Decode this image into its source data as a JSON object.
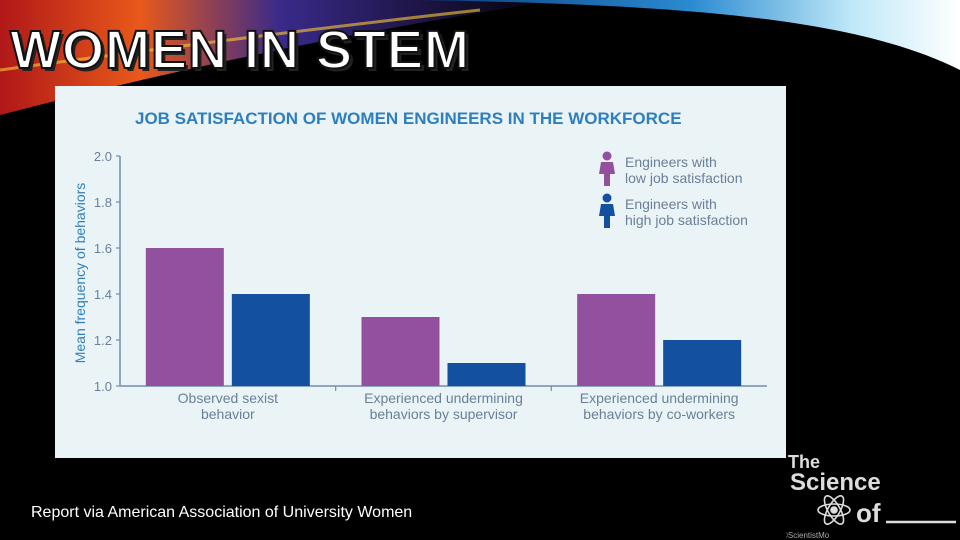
{
  "slide": {
    "title": "WOMEN IN STEM",
    "footer": "Report via American Association of University Women"
  },
  "logo": {
    "line1": "The",
    "line2": "Science",
    "line3": "of",
    "credit": "©ScientistMo"
  },
  "colors": {
    "low": "#93509f",
    "high": "#1450a0",
    "title": "#2f7fc0",
    "axis": "#6f8fb0",
    "tick": "#6a7f99"
  },
  "chart_data": {
    "type": "bar",
    "title": "JOB SATISFACTION OF WOMEN ENGINEERS IN THE WORKFORCE",
    "ylabel": "Mean frequency of behaviors",
    "xlabel": "",
    "ylim": [
      1.0,
      2.0
    ],
    "yticks": [
      "1.0",
      "1.2",
      "1.4",
      "1.6",
      "1.8",
      "2.0"
    ],
    "categories": [
      [
        "Observed sexist",
        "behavior"
      ],
      [
        "Experienced undermining",
        "behaviors by supervisor"
      ],
      [
        "Experienced undermining",
        "behaviors by co-workers"
      ]
    ],
    "series": [
      {
        "name": "Engineers with low job satisfaction",
        "legend": [
          "Engineers with",
          "low job satisfaction"
        ],
        "values": [
          1.6,
          1.3,
          1.4
        ]
      },
      {
        "name": "Engineers with high job satisfaction",
        "legend": [
          "Engineers with",
          "high job satisfaction"
        ],
        "values": [
          1.4,
          1.1,
          1.2
        ]
      }
    ],
    "legend_position": "top-right",
    "grid": false
  }
}
